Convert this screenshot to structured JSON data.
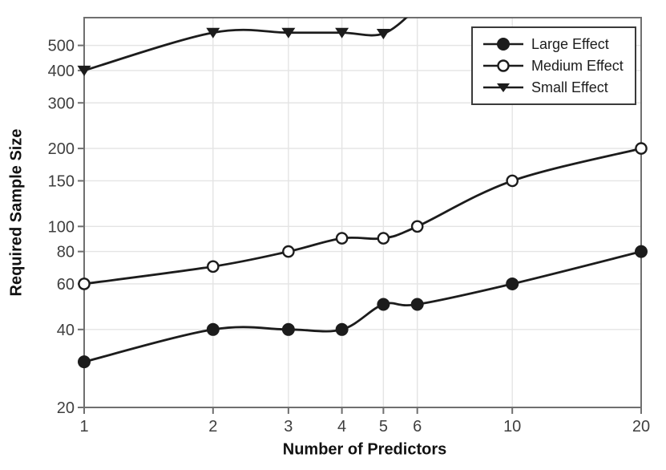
{
  "chart_data": {
    "type": "line",
    "title": "",
    "xlabel": "Number of Predictors",
    "ylabel": "Required Sample Size",
    "x_scale": "log",
    "y_scale": "log",
    "xlim": [
      1,
      20
    ],
    "ylim": [
      20,
      640
    ],
    "x_ticks": [
      1,
      2,
      3,
      4,
      5,
      6,
      10,
      20
    ],
    "y_ticks": [
      20,
      40,
      60,
      80,
      100,
      150,
      200,
      300,
      400,
      500
    ],
    "grid": true,
    "legend_position": "top-right",
    "series": [
      {
        "name": "Large Effect",
        "marker": "filled-circle",
        "x": [
          1,
          2,
          3,
          4,
          5,
          6,
          10,
          20
        ],
        "values": [
          30,
          40,
          40,
          40,
          50,
          50,
          60,
          80
        ]
      },
      {
        "name": "Medium Effect",
        "marker": "open-circle",
        "x": [
          1,
          2,
          3,
          4,
          5,
          6,
          10,
          20
        ],
        "values": [
          60,
          70,
          80,
          90,
          90,
          100,
          150,
          200
        ]
      },
      {
        "name": "Small Effect",
        "marker": "filled-triangle-down",
        "x": [
          1,
          2,
          3,
          4,
          5,
          6
        ],
        "values": [
          400,
          560,
          560,
          560,
          555,
          700
        ],
        "note": "curve exits the top of the plot between x=5 and x=6"
      }
    ],
    "colors": {
      "line": "#1c1c1c",
      "grid": "#e4e4e4",
      "frame": "#6f6f6f",
      "tick_label": "#3f3f3f",
      "axis_title": "#111111",
      "background": "#ffffff",
      "legend_border": "#3a3a3a"
    }
  }
}
